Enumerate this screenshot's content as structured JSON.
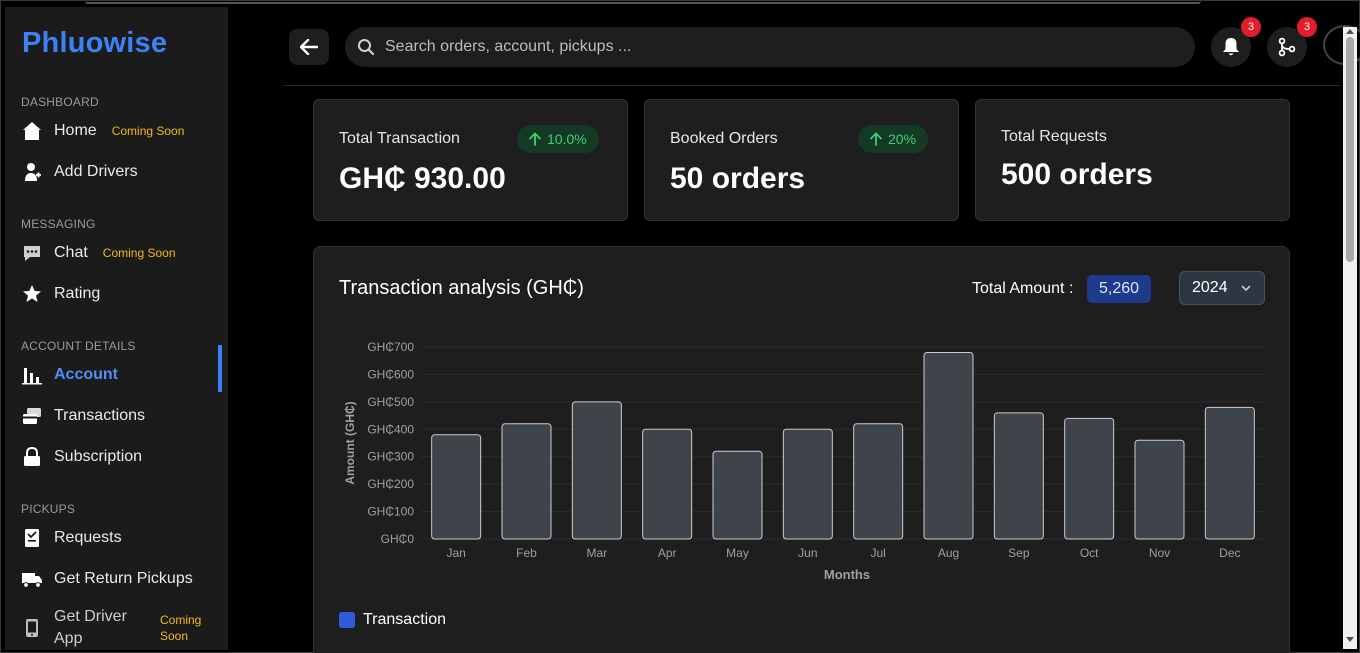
{
  "app": {
    "logo": "Phluowise"
  },
  "sidebar": {
    "sections": [
      {
        "title": "DASHBOARD",
        "items": [
          {
            "label": "Home",
            "soon": "Coming Soon",
            "icon": "home-icon"
          },
          {
            "label": "Add Drivers",
            "soon": "",
            "icon": "add-driver-icon"
          }
        ]
      },
      {
        "title": "MESSAGING",
        "items": [
          {
            "label": "Chat",
            "soon": "Coming Soon",
            "icon": "chat-icon"
          },
          {
            "label": "Rating",
            "soon": "",
            "icon": "star-icon"
          }
        ]
      },
      {
        "title": "ACCOUNT DETAILS",
        "items": [
          {
            "label": "Account",
            "soon": "",
            "icon": "bar-chart-icon",
            "active": true
          },
          {
            "label": "Transactions",
            "soon": "",
            "icon": "transactions-icon"
          },
          {
            "label": "Subscription",
            "soon": "",
            "icon": "lock-icon"
          }
        ]
      },
      {
        "title": "PICKUPS",
        "items": [
          {
            "label": "Requests",
            "soon": "",
            "icon": "requests-icon"
          },
          {
            "label": "Get Return Pickups",
            "soon": "",
            "icon": "truck-icon"
          },
          {
            "label": "Get Driver App",
            "soon": "Coming Soon",
            "icon": "phone-icon"
          }
        ]
      }
    ]
  },
  "header": {
    "search_placeholder": "Search orders, account, pickups ...",
    "notifications_count": "3",
    "branches_count": "3"
  },
  "stats": [
    {
      "title": "Total Transaction",
      "value": "GH₵ 930.00",
      "change": "10.0%"
    },
    {
      "title": "Booked Orders",
      "value": "50 orders",
      "change": "20%"
    },
    {
      "title": "Total Requests",
      "value": "500 orders",
      "change": ""
    }
  ],
  "analysis": {
    "title": "Transaction analysis (GH₵)",
    "total_label": "Total Amount :",
    "total_value": "5,260",
    "year": "2024"
  },
  "colors": {
    "accent": "#3b82f6",
    "bar_fill": "#3f434a",
    "bar_stroke": "#c9ccd1",
    "legend": "#2e5bdc"
  },
  "chart_data": {
    "type": "bar",
    "categories": [
      "Jan",
      "Feb",
      "Mar",
      "Apr",
      "May",
      "Jun",
      "Jul",
      "Aug",
      "Sep",
      "Oct",
      "Nov",
      "Dec"
    ],
    "series": [
      {
        "name": "Transaction",
        "values": [
          380,
          420,
          500,
          400,
          320,
          400,
          420,
          680,
          460,
          440,
          360,
          480
        ]
      }
    ],
    "xlabel": "Months",
    "ylabel": "Amount (GH₵)",
    "ylim": [
      0,
      700
    ],
    "yticks": [
      "GH₵0",
      "GH₵100",
      "GH₵200",
      "GH₵300",
      "GH₵400",
      "GH₵500",
      "GH₵600",
      "GH₵700"
    ],
    "grid": true,
    "legend": "bottom-left"
  }
}
